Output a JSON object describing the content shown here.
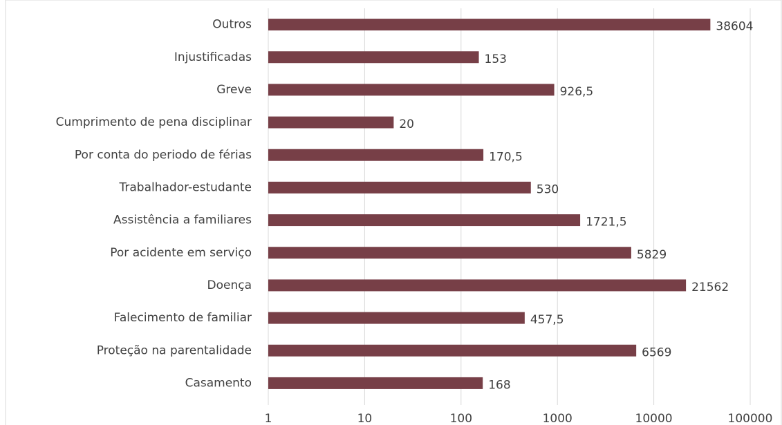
{
  "chart_data": {
    "type": "bar",
    "orientation": "horizontal",
    "categories": [
      "Outros",
      "Injustificadas",
      "Greve",
      "Cumprimento de pena disciplinar",
      "Por conta do periodo de férias",
      "Trabalhador-estudante",
      "Assistência a familiares",
      "Por acidente em serviço",
      "Doença",
      "Falecimento de familiar",
      "Proteção na parentalidade",
      "Casamento"
    ],
    "values": [
      38604,
      153,
      926.5,
      20,
      170.5,
      530,
      1721.5,
      5829,
      21562,
      457.5,
      6569,
      168
    ],
    "value_labels": [
      "38604",
      "153",
      "926,5",
      "20",
      "170,5",
      "530",
      "1721,5",
      "5829",
      "21562",
      "457,5",
      "6569",
      "168"
    ],
    "color": "#773f47",
    "xscale": "log",
    "xlim": [
      1,
      100000
    ],
    "xticks": [
      1,
      10,
      100,
      1000,
      10000,
      100000
    ],
    "grid": true
  }
}
